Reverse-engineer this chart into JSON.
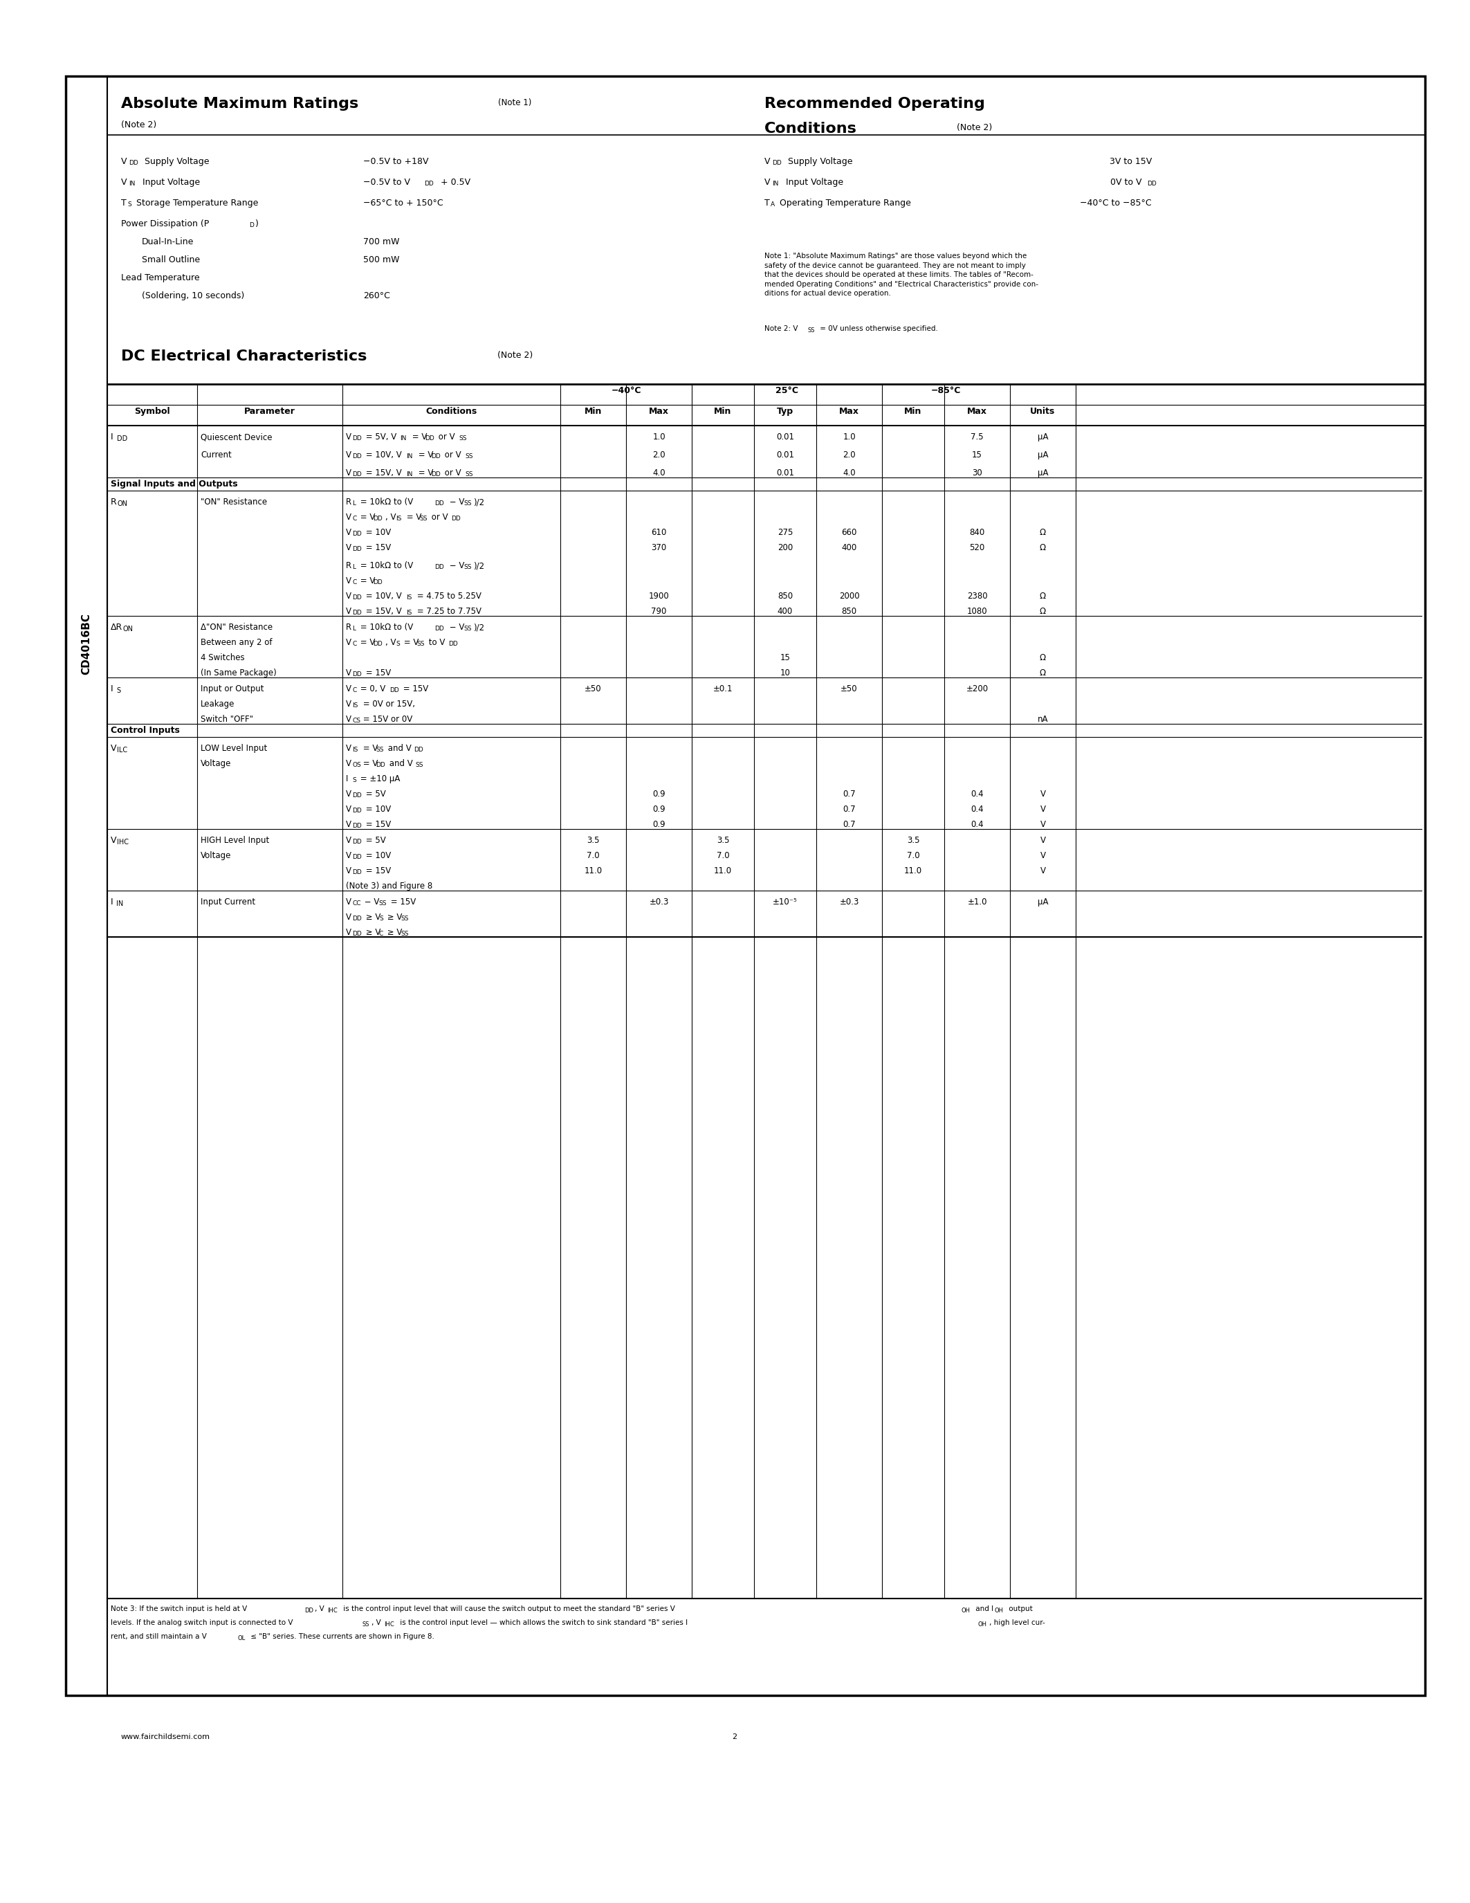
{
  "page_bg": "#ffffff",
  "border_color": "#000000",
  "sidebar_text": "CD4016BC",
  "footer_url": "www.fairchildsemi.com",
  "footer_page": "2",
  "abs_max_title": "Absolute Maximum Ratings",
  "abs_max_note1": "(Note 1)",
  "abs_max_note2": "(Note 2)",
  "rec_op_title1": "Recommended Operating",
  "rec_op_title2": "Conditions",
  "rec_op_note": "  (Note 2)",
  "dc_title": "DC Electrical Characteristics",
  "dc_note": " (Note 2)"
}
